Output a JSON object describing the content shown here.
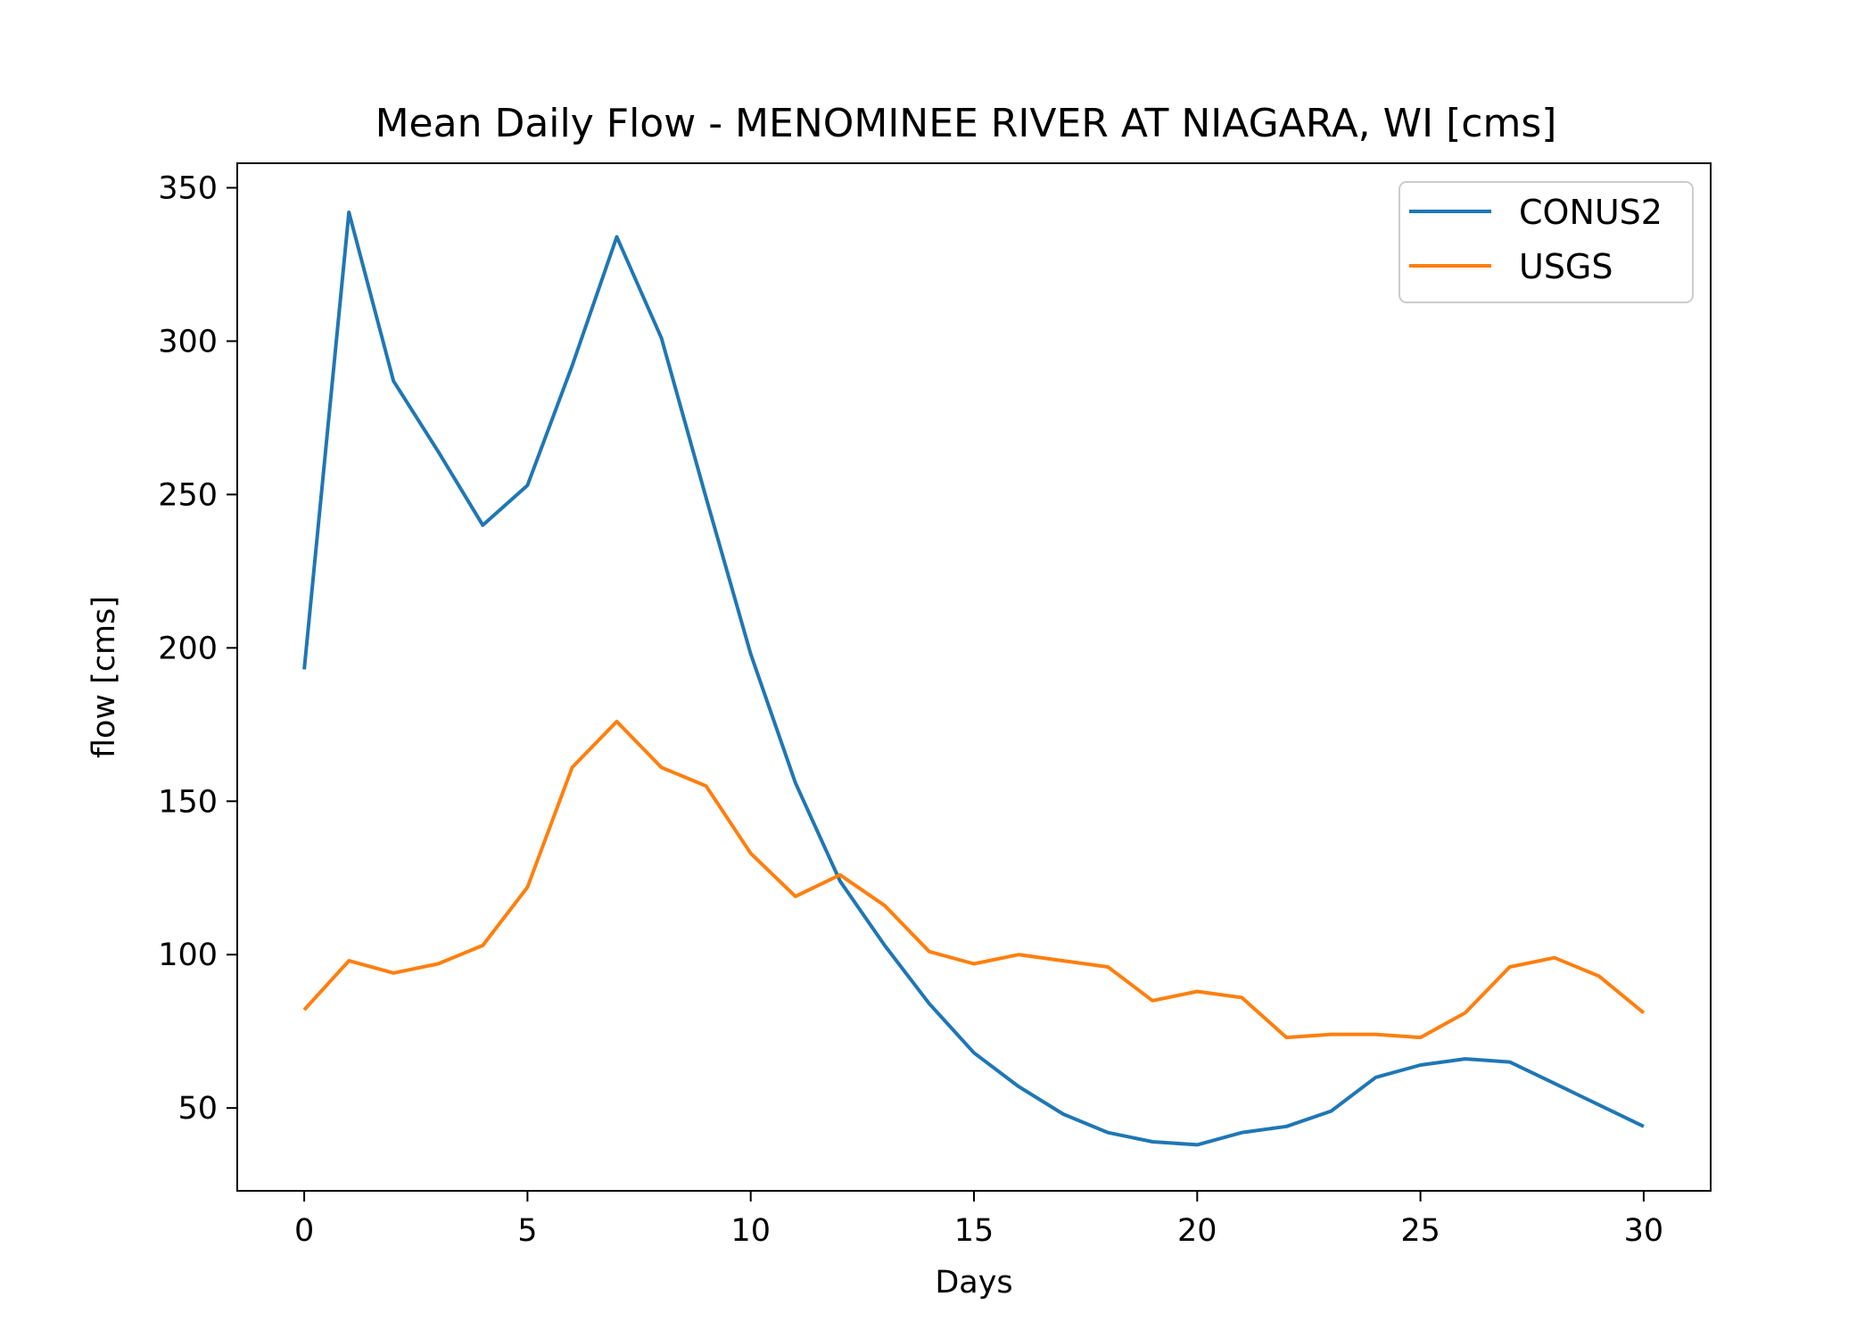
{
  "chart_data": {
    "type": "line",
    "title": "Mean Daily Flow - MENOMINEE RIVER AT NIAGARA, WI [cms]",
    "xlabel": "Days",
    "ylabel": "flow [cms]",
    "xlim": [
      -1.5,
      31.5
    ],
    "ylim": [
      23,
      358
    ],
    "x_ticks": [
      "0",
      "5",
      "10",
      "15",
      "20",
      "25",
      "30"
    ],
    "y_ticks": [
      "50",
      "100",
      "150",
      "200",
      "250",
      "300",
      "350"
    ],
    "grid": false,
    "legend_position": "top-right",
    "x": [
      0,
      1,
      2,
      3,
      4,
      5,
      6,
      7,
      8,
      9,
      10,
      11,
      12,
      13,
      14,
      15,
      16,
      17,
      18,
      19,
      20,
      21,
      22,
      23,
      24,
      25,
      26,
      27,
      28,
      29,
      30
    ],
    "series": [
      {
        "name": "CONUS2",
        "color": "#1f77b4",
        "values": [
          193,
          342,
          287,
          264,
          240,
          253,
          292,
          334,
          301,
          249,
          198,
          156,
          124,
          103,
          84,
          68,
          57,
          48,
          42,
          39,
          38,
          42,
          44,
          49,
          60,
          64,
          66,
          65,
          58,
          51,
          44
        ]
      },
      {
        "name": "USGS",
        "color": "#ff7f0e",
        "values": [
          82,
          98,
          94,
          97,
          103,
          122,
          161,
          176,
          161,
          155,
          133,
          119,
          126,
          116,
          101,
          97,
          100,
          98,
          96,
          85,
          88,
          86,
          73,
          74,
          74,
          73,
          81,
          96,
          99,
          93,
          81
        ]
      }
    ]
  }
}
